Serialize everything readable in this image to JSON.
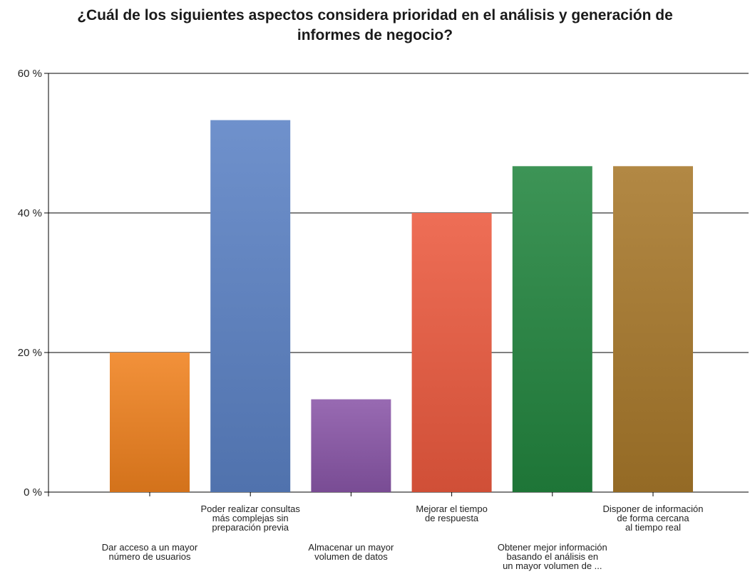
{
  "chart_data": {
    "type": "bar",
    "title": "¿Cuál de los siguientes aspectos considera prioridad en el análisis y generación de informes de negocio?",
    "title_lines": [
      "¿Cuál de los siguientes aspectos considera prioridad en el análisis y generación de",
      "informes de negocio?"
    ],
    "xlabel": "",
    "ylabel": "",
    "ylim": [
      0,
      60
    ],
    "yticks": [
      0,
      20,
      40,
      60
    ],
    "ytick_labels": [
      "0 %",
      "20 %",
      "40 %",
      "60 %"
    ],
    "grid": true,
    "legend": "none",
    "categories": [
      "Dar acceso a un mayor número de usuarios",
      "Poder realizar consultas más complejas sin preparación previa",
      "Almacenar un mayor volumen de datos",
      "Mejorar el tiempo de respuesta",
      "Obtener mejor información basando el análisis en un mayor volumen de ...",
      "Disponer de información de forma cercana al tiempo real"
    ],
    "category_label_lines": [
      [
        "Dar acceso a un mayor",
        "número de usuarios"
      ],
      [
        "Poder realizar consultas",
        "más complejas sin",
        "preparación previa"
      ],
      [
        "Almacenar un mayor",
        "volumen de datos"
      ],
      [
        "Mejorar el tiempo",
        "de respuesta"
      ],
      [
        "Obtener mejor información",
        "basando el análisis en",
        "un mayor volumen de ..."
      ],
      [
        "Disponer de información",
        "de forma cercana",
        "al tiempo real"
      ]
    ],
    "values": [
      20,
      53.3,
      13.3,
      40,
      46.7,
      46.7
    ],
    "colors": [
      "#f0821f",
      "#5b82c5",
      "#8a56a8",
      "#ec5a3f",
      "#22853f",
      "#a8782a"
    ]
  }
}
